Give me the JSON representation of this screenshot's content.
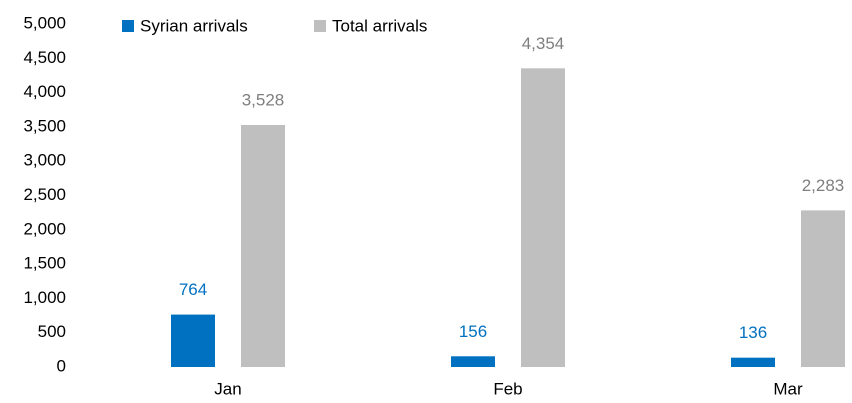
{
  "chart_data": {
    "type": "bar",
    "categories": [
      "Jan",
      "Feb",
      "Mar"
    ],
    "series": [
      {
        "name": "Syrian arrivals",
        "color": "#0070c0",
        "label_color": "#0070c0",
        "values": [
          764,
          156,
          136
        ]
      },
      {
        "name": "Total arrivals",
        "color": "#bfbfbf",
        "label_color": "#7f7f7f",
        "values": [
          3528,
          4354,
          2283
        ],
        "value_labels": [
          "3,528",
          "4,354",
          "2,283"
        ]
      }
    ],
    "ylim": [
      0,
      5000
    ],
    "yticks": [
      0,
      500,
      {
        "value": 1000,
        "label": "1,000"
      },
      {
        "value": 1500,
        "label": "1,500"
      },
      {
        "value": 2000,
        "label": "2,000"
      },
      {
        "value": 2500,
        "label": "2,500"
      },
      {
        "value": 3000,
        "label": "3,000"
      },
      {
        "value": 3500,
        "label": "3,500"
      },
      {
        "value": 4000,
        "label": "4,000"
      },
      {
        "value": 4500,
        "label": "4,500"
      },
      {
        "value": 5000,
        "label": "5,000"
      }
    ],
    "grid": false,
    "legend": "top"
  }
}
